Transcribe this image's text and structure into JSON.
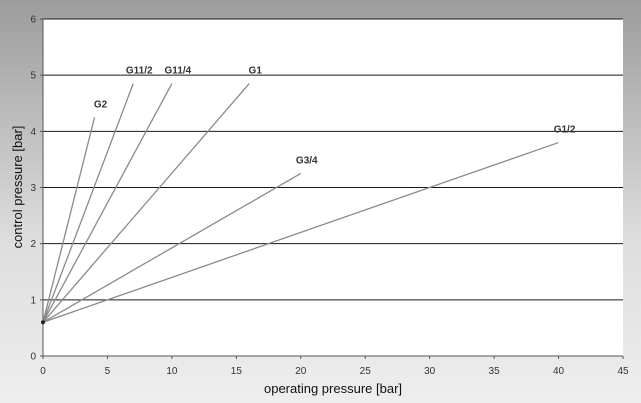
{
  "chart_data": {
    "type": "line",
    "title": "",
    "xlabel": "operating pressure [bar]",
    "ylabel": "control pressure [bar]",
    "xlim": [
      0,
      45
    ],
    "ylim": [
      0,
      6
    ],
    "xticks": [
      0,
      5,
      10,
      15,
      20,
      25,
      30,
      35,
      40,
      45
    ],
    "yticks": [
      0,
      1,
      2,
      3,
      4,
      5,
      6
    ],
    "grid": "horizontal",
    "legend": "inline labels at line ends",
    "line_color": "#8a8a8a",
    "series": [
      {
        "name": "G2",
        "points": [
          [
            0,
            0.6
          ],
          [
            4,
            4.25
          ]
        ]
      },
      {
        "name": "G11/2",
        "points": [
          [
            0,
            0.6
          ],
          [
            7,
            4.85
          ]
        ]
      },
      {
        "name": "G11/4",
        "points": [
          [
            0,
            0.6
          ],
          [
            10,
            4.85
          ]
        ]
      },
      {
        "name": "G1",
        "points": [
          [
            0,
            0.6
          ],
          [
            16,
            4.85
          ]
        ]
      },
      {
        "name": "G3/4",
        "points": [
          [
            0,
            0.6
          ],
          [
            20,
            3.25
          ]
        ]
      },
      {
        "name": "G1/2",
        "points": [
          [
            0,
            0.6
          ],
          [
            40,
            3.8
          ]
        ]
      }
    ]
  }
}
